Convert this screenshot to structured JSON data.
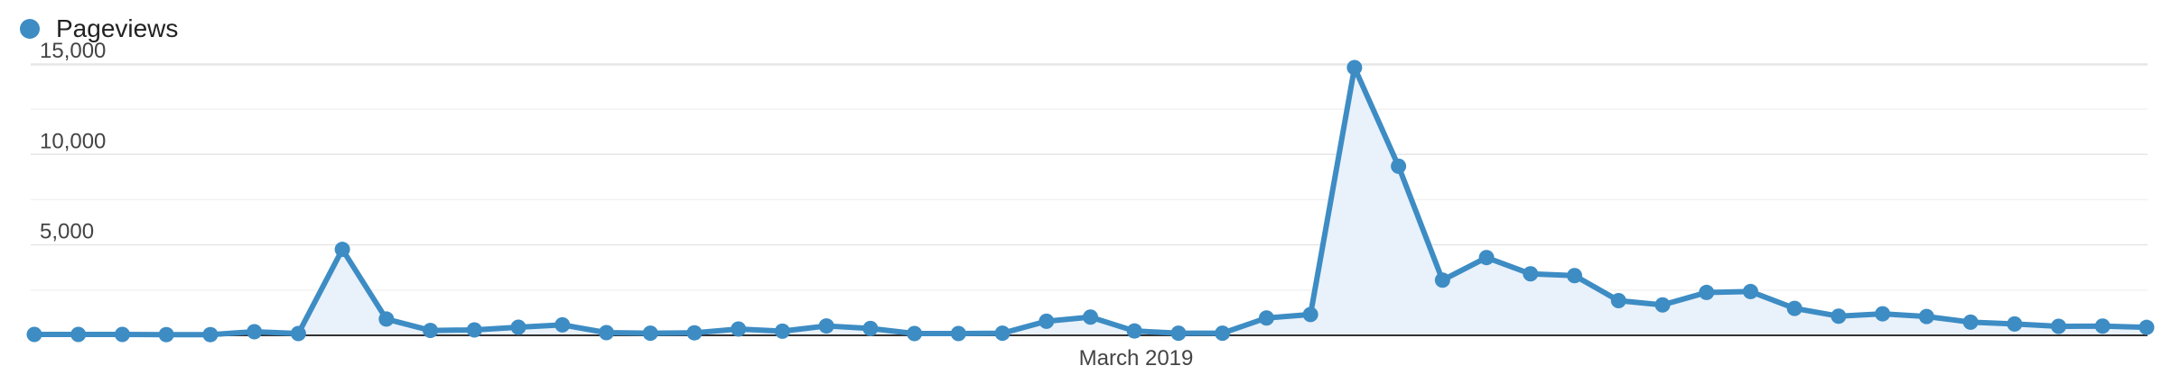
{
  "legend": {
    "label": "Pageviews"
  },
  "colors": {
    "series": "#3d8cc4",
    "area": "#e9f1fa",
    "grid": "#e6e6e6",
    "minor_grid": "#f2f2f2",
    "baseline": "#333333"
  },
  "chart_data": {
    "type": "area",
    "xlabel": "",
    "ylabel": "",
    "x_axis_labels": [
      "March 2019"
    ],
    "ylim": [
      0,
      15000
    ],
    "yticks": [
      5000,
      10000,
      15000
    ],
    "ytick_labels": [
      "5,000",
      "10,000",
      "15,000"
    ],
    "grid": true,
    "legend_position": "top-left",
    "series": [
      {
        "name": "Pageviews",
        "values": [
          50,
          50,
          50,
          40,
          40,
          200,
          100,
          4750,
          900,
          270,
          300,
          450,
          580,
          150,
          120,
          140,
          350,
          230,
          520,
          380,
          100,
          100,
          120,
          780,
          1010,
          240,
          120,
          120,
          960,
          1150,
          14800,
          9350,
          3050,
          4300,
          3400,
          3300,
          1920,
          1680,
          2370,
          2420,
          1490,
          1060,
          1190,
          1040,
          730,
          630,
          500,
          510,
          440
        ]
      }
    ]
  }
}
